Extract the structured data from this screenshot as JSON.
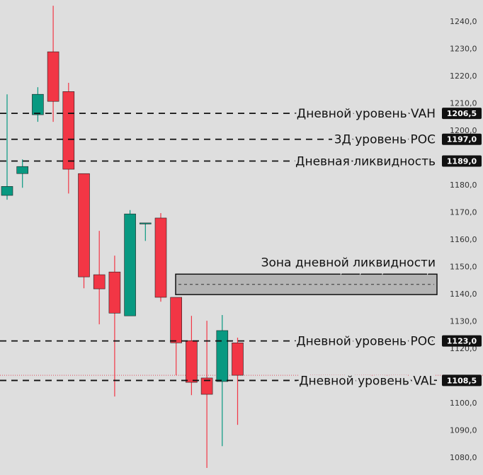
{
  "chart_data": {
    "type": "candlestick",
    "open": [
      1176.4,
      1184.4,
      1206.0,
      1229.1,
      1214.5,
      1184.4,
      1147.3,
      1148.3,
      1132.2,
      1166.0,
      1168.1,
      1139.0,
      1123.1,
      1109.4,
      1108.1,
      1122.3
    ],
    "high": [
      1213.5,
      1189.6,
      1216.1,
      1246.0,
      1217.7,
      1184.4,
      1163.4,
      1154.3,
      1171.0,
      1166.3,
      1169.9,
      1139.0,
      1132.2,
      1130.4,
      1132.5,
      1124.2
    ],
    "low": [
      1174.8,
      1179.2,
      1203.4,
      1203.4,
      1177.1,
      1142.3,
      1129.1,
      1102.6,
      1132.2,
      1159.7,
      1137.4,
      1110.4,
      1103.1,
      1076.4,
      1084.4,
      1092.2
    ],
    "close": [
      1179.7,
      1187.0,
      1213.5,
      1210.9,
      1186.0,
      1146.5,
      1142.1,
      1133.2,
      1169.6,
      1166.3,
      1139.0,
      1122.3,
      1107.8,
      1103.4,
      1126.8,
      1110.4
    ],
    "up_color": "#089981",
    "down_color": "#f23645",
    "ylim": [
      1073.8,
      1248.1
    ],
    "yticks": [
      {
        "value": 1080,
        "label": "1080,0"
      },
      {
        "value": 1090,
        "label": "1090,0"
      },
      {
        "value": 1100,
        "label": "1100,0"
      },
      {
        "value": 1120,
        "label": "1120,0"
      },
      {
        "value": 1130,
        "label": "1130,0"
      },
      {
        "value": 1140,
        "label": "1140,0"
      },
      {
        "value": 1150,
        "label": "1150,0"
      },
      {
        "value": 1160,
        "label": "1160,0"
      },
      {
        "value": 1170,
        "label": "1170,0"
      },
      {
        "value": 1180,
        "label": "1180,0"
      },
      {
        "value": 1200,
        "label": "1200,0"
      },
      {
        "value": 1210,
        "label": "1210,0"
      },
      {
        "value": 1220,
        "label": "1220,0"
      },
      {
        "value": 1230,
        "label": "1230,0"
      },
      {
        "value": 1240,
        "label": "1240,0"
      }
    ],
    "levels": [
      {
        "label": "Дневной уровень VAH",
        "value": 1206.5,
        "value_label": "1206,5"
      },
      {
        "label": "3Д уровень POC",
        "value": 1197.0,
        "value_label": "1197,0"
      },
      {
        "label": "Дневная ликвидность",
        "value": 1189.0,
        "value_label": "1189,0"
      },
      {
        "label": "Дневной уровень POC",
        "value": 1123.0,
        "value_label": "1123,0"
      },
      {
        "label": "Дневной уровень VAL",
        "value": 1108.5,
        "value_label": "1108,5"
      }
    ],
    "zone": {
      "label": "Зона дневной ликвидности",
      "low": 1140.0,
      "high": 1147.5
    },
    "current_price": 1110.4
  }
}
